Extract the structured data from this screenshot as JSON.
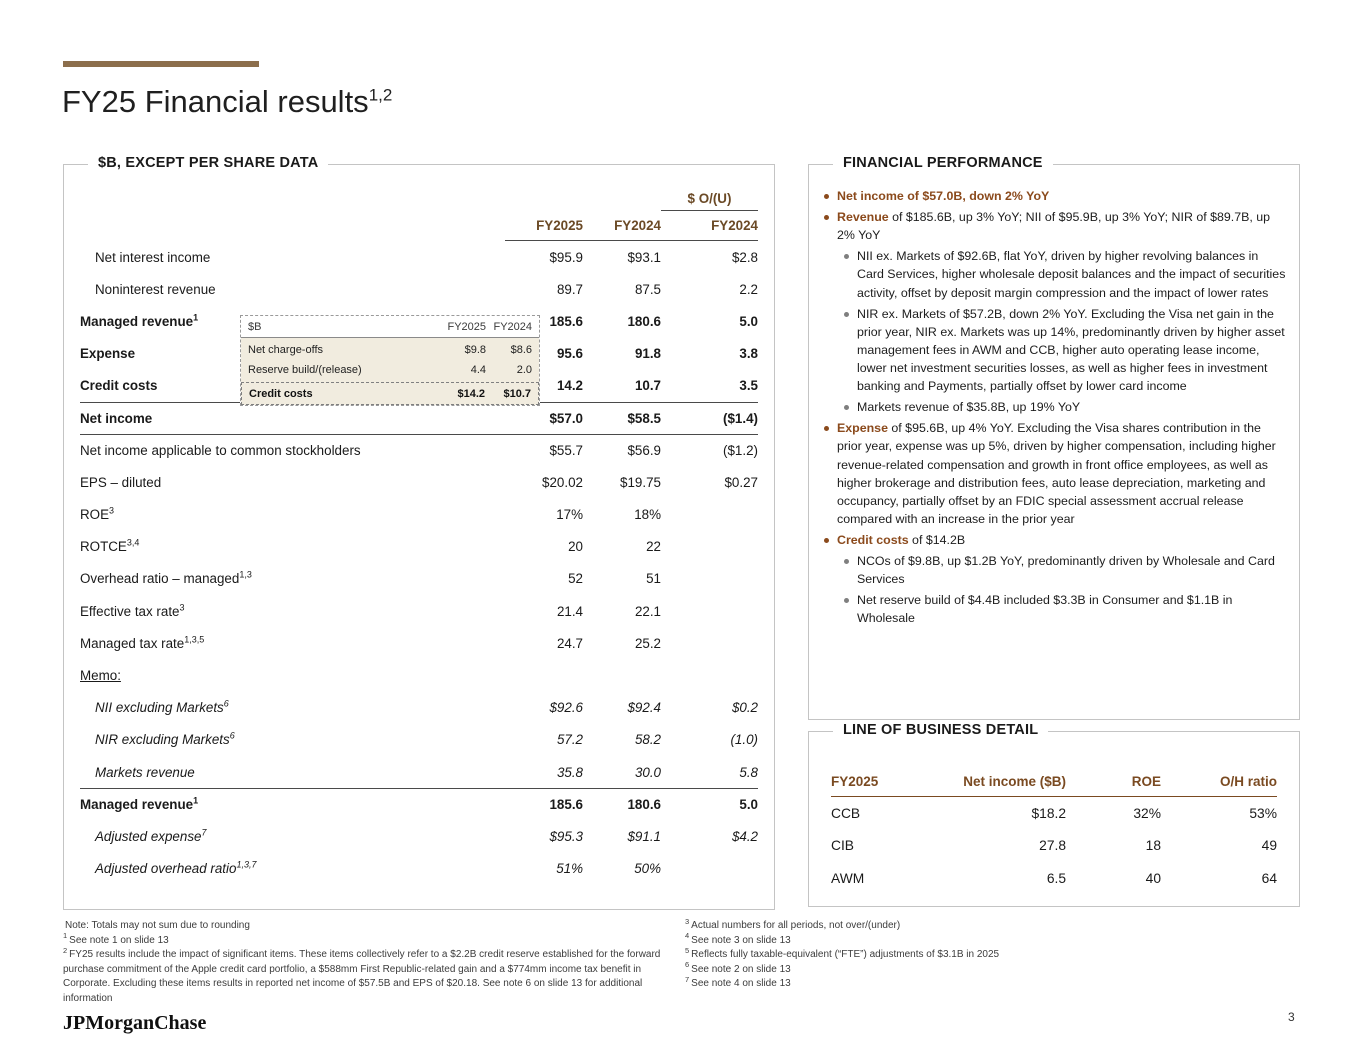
{
  "slide": {
    "title": "FY25 Financial results",
    "title_sup": "1,2",
    "logo": "JPMorganChase",
    "page_number": "3"
  },
  "colors": {
    "accent_bar": "#8c6e4c",
    "table_header_brown": "#6b4a26",
    "bullet_lead_brown": "#8b4a1c",
    "lob_header_brown": "#7a4a21",
    "inset_background": "#f1ecdf"
  },
  "left_panel": {
    "section_title": "$B, EXCEPT PER SHARE DATA",
    "col_group_header": "$ O/(U)",
    "col_headers": [
      "FY2025",
      "FY2024",
      "FY2024"
    ],
    "rows": [
      {
        "label": "Net interest income",
        "sup": "",
        "v1": "$95.9",
        "v2": "$93.1",
        "v3": "$2.8"
      },
      {
        "label": "Noninterest revenue",
        "sup": "",
        "v1": "89.7",
        "v2": "87.5",
        "v3": "2.2"
      },
      {
        "label": "Managed revenue",
        "sup": "1",
        "v1": "185.6",
        "v2": "180.6",
        "v3": "5.0"
      },
      {
        "label": "Expense",
        "sup": "",
        "v1": "95.6",
        "v2": "91.8",
        "v3": "3.8"
      },
      {
        "label": "Credit costs",
        "sup": "",
        "v1": "14.2",
        "v2": "10.7",
        "v3": "3.5"
      },
      {
        "label": "Net income",
        "sup": "",
        "v1": "$57.0",
        "v2": "$58.5",
        "v3": "($1.4)"
      },
      {
        "label": "Net income applicable to common stockholders",
        "sup": "",
        "v1": "$55.7",
        "v2": "$56.9",
        "v3": "($1.2)"
      },
      {
        "label": "EPS – diluted",
        "sup": "",
        "v1": "$20.02",
        "v2": "$19.75",
        "v3": "$0.27"
      },
      {
        "label": "ROE",
        "sup": "3",
        "v1": "17%",
        "v2": "18%",
        "v3": ""
      },
      {
        "label": "ROTCE",
        "sup": "3,4",
        "v1": "20",
        "v2": "22",
        "v3": ""
      },
      {
        "label": "Overhead ratio – managed",
        "sup": "1,3",
        "v1": "52",
        "v2": "51",
        "v3": ""
      },
      {
        "label": "Effective tax rate",
        "sup": "3",
        "v1": "21.4",
        "v2": "22.1",
        "v3": ""
      },
      {
        "label": "Managed tax rate",
        "sup": "1,3,5",
        "v1": "24.7",
        "v2": "25.2",
        "v3": ""
      },
      {
        "label": "Memo:",
        "sup": "",
        "v1": "",
        "v2": "",
        "v3": ""
      },
      {
        "label": "NII excluding Markets",
        "sup": "6",
        "v1": "$92.6",
        "v2": "$92.4",
        "v3": "$0.2"
      },
      {
        "label": "NIR excluding Markets",
        "sup": "6",
        "v1": "57.2",
        "v2": "58.2",
        "v3": "(1.0)"
      },
      {
        "label": "Markets revenue",
        "sup": "",
        "v1": "35.8",
        "v2": "30.0",
        "v3": "5.8"
      },
      {
        "label": "Managed revenue",
        "sup": "1",
        "v1": "185.6",
        "v2": "180.6",
        "v3": "5.0"
      },
      {
        "label": "Adjusted expense",
        "sup": "7",
        "v1": "$95.3",
        "v2": "$91.1",
        "v3": "$4.2"
      },
      {
        "label": "Adjusted overhead ratio",
        "sup": "1,3,7",
        "v1": "51%",
        "v2": "50%",
        "v3": ""
      }
    ],
    "inset": {
      "col_headers": [
        "$B",
        "FY2025",
        "FY2024"
      ],
      "rows": [
        {
          "label": "Net charge-offs",
          "v1": "$9.8",
          "v2": "$8.6"
        },
        {
          "label": "Reserve build/(release)",
          "v1": "4.4",
          "v2": "2.0"
        }
      ],
      "total_row": {
        "label": "Credit costs",
        "v1": "$14.2",
        "v2": "$10.7"
      }
    }
  },
  "financial_performance": {
    "section_title": "FINANCIAL PERFORMANCE",
    "bullets": [
      {
        "level": 1,
        "lead": "Net income of $57.0B, down 2% YoY",
        "rest": ""
      },
      {
        "level": 1,
        "lead": "Revenue",
        "rest": " of $185.6B, up 3% YoY; NII of $95.9B, up 3% YoY; NIR of $89.7B, up 2% YoY"
      },
      {
        "level": 2,
        "lead": "",
        "rest": "NII ex. Markets of $92.6B, flat YoY, driven by higher revolving balances in Card Services, higher wholesale deposit balances and the impact of securities activity, offset by deposit margin compression and the impact of lower rates"
      },
      {
        "level": 2,
        "lead": "",
        "rest": "NIR ex. Markets of $57.2B, down 2% YoY. Excluding the Visa net gain in the prior year, NIR ex. Markets was up 14%, predominantly driven by higher asset management fees in AWM and CCB, higher auto operating lease income, lower net investment securities losses, as well as higher fees in investment banking and Payments, partially offset by lower card income"
      },
      {
        "level": 2,
        "lead": "",
        "rest": "Markets revenue of $35.8B, up 19% YoY"
      },
      {
        "level": 1,
        "lead": "Expense",
        "rest": " of $95.6B, up 4% YoY. Excluding the Visa shares contribution in the prior year, expense was up 5%, driven by higher compensation, including higher revenue-related compensation and growth in front office employees, as well as higher brokerage and distribution fees, auto lease depreciation, marketing and occupancy, partially offset by an FDIC special assessment accrual release compared with an increase in the prior year"
      },
      {
        "level": 1,
        "lead": "Credit costs",
        "rest": " of $14.2B"
      },
      {
        "level": 2,
        "lead": "",
        "rest": "NCOs of $9.8B, up $1.2B YoY, predominantly driven by Wholesale and Card Services"
      },
      {
        "level": 2,
        "lead": "",
        "rest": "Net reserve build of $4.4B included $3.3B in Consumer and $1.1B in Wholesale"
      }
    ]
  },
  "lob": {
    "section_title": "LINE OF BUSINESS DETAIL",
    "headers": [
      "FY2025",
      "Net income ($B)",
      "ROE",
      "O/H ratio"
    ],
    "rows": [
      {
        "name": "CCB",
        "net_income": "$18.2",
        "roe": "32%",
        "oh": "53%"
      },
      {
        "name": "CIB",
        "net_income": "27.8",
        "roe": "18",
        "oh": "49"
      },
      {
        "name": "AWM",
        "net_income": "6.5",
        "roe": "40",
        "oh": "64"
      }
    ]
  },
  "footnotes": {
    "left": [
      {
        "sup": "",
        "text": "Note: Totals may not sum due to rounding"
      },
      {
        "sup": "1",
        "text": "See note 1 on slide 13"
      },
      {
        "sup": "2",
        "text": "FY25 results include the impact of significant items. These items collectively refer to a $2.2B credit reserve established for the forward purchase commitment of the Apple credit card portfolio, a $588mm First Republic-related gain and a $774mm income tax benefit in Corporate. Excluding these items results in reported net income of $57.5B and EPS of $20.18. See note 6 on slide 13 for additional information"
      }
    ],
    "right": [
      {
        "sup": "3",
        "text": "Actual numbers for all periods, not over/(under)"
      },
      {
        "sup": "4",
        "text": "See note 3 on slide 13"
      },
      {
        "sup": "5",
        "text": "Reflects fully taxable-equivalent (“FTE”) adjustments of $3.1B in 2025"
      },
      {
        "sup": "6",
        "text": "See note 2 on slide 13"
      },
      {
        "sup": "7",
        "text": "See note 4 on slide 13"
      }
    ]
  }
}
